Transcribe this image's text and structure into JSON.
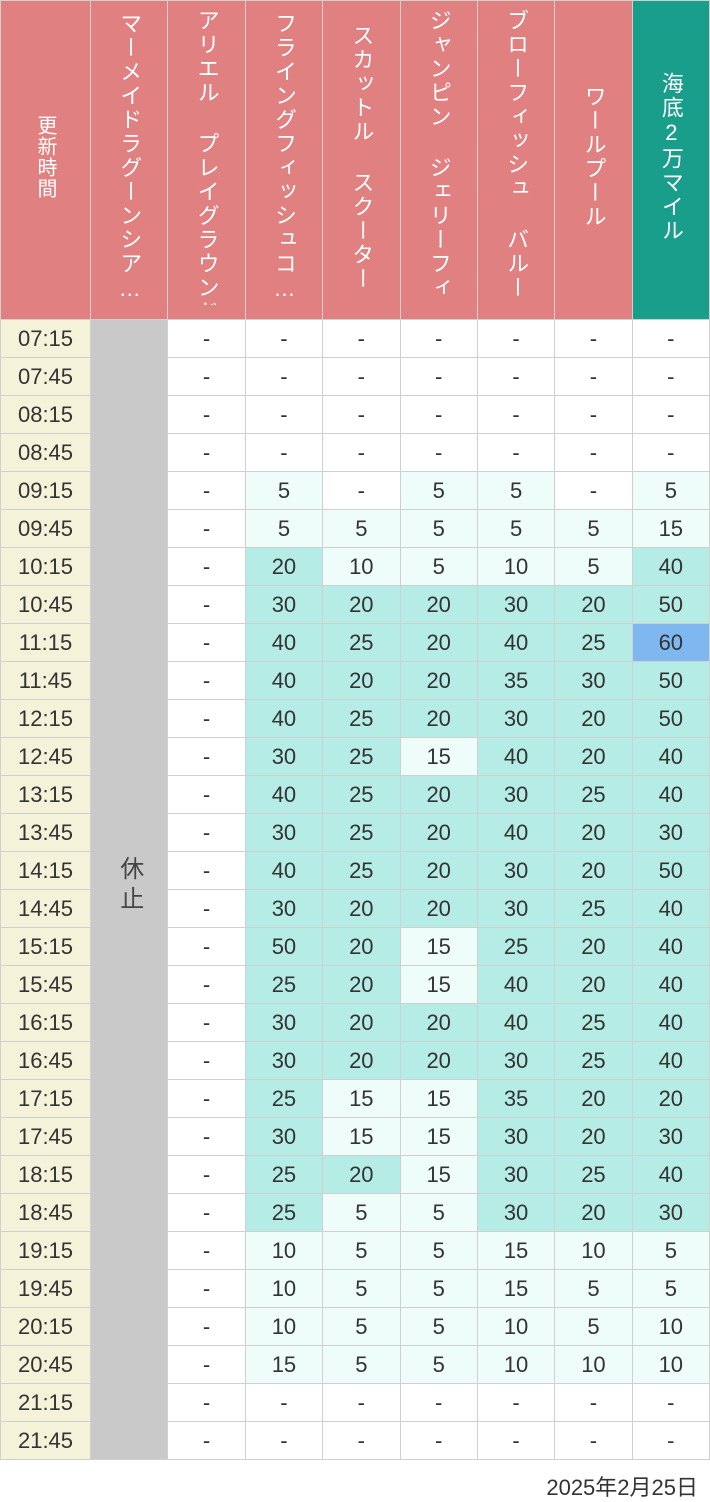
{
  "footer_date": "2025年2月25日",
  "colors": {
    "header_pink": "#e08080",
    "header_teal": "#1a9e8c",
    "time_bg": "#f5f2da",
    "closed_bg": "#c9c9c9",
    "white": "#ffffff",
    "tier1": "#eefcfa",
    "tier2": "#b5ece5",
    "tier3": "#7fb8f0",
    "border": "#d0d0d0"
  },
  "columns": [
    {
      "key": "time",
      "label": "更新時間",
      "header_color": "header_pink",
      "is_time": true
    },
    {
      "key": "c1",
      "label": "マーメイドラグーンシア…",
      "header_color": "header_pink"
    },
    {
      "key": "c2",
      "label": "アリエル プレイグラウンド",
      "header_color": "header_pink"
    },
    {
      "key": "c3",
      "label": "フライングフィッシュコ…",
      "header_color": "header_pink"
    },
    {
      "key": "c4",
      "label": "スカットル スクーター",
      "header_color": "header_pink"
    },
    {
      "key": "c5",
      "label": "ジャンピン ジェリーフィ…",
      "header_color": "header_pink"
    },
    {
      "key": "c6",
      "label": "ブローフィッシュ バルー…",
      "header_color": "header_pink"
    },
    {
      "key": "c7",
      "label": "ワールプール",
      "header_color": "header_pink"
    },
    {
      "key": "c8",
      "label": "海底2万マイル",
      "header_color": "header_teal"
    }
  ],
  "closed_label": "休止",
  "closed_column": "c1",
  "heat_thresholds": {
    "tier1_max": 19,
    "tier2_max": 59
  },
  "rows": [
    {
      "time": "07:15",
      "c2": "-",
      "c3": "-",
      "c4": "-",
      "c5": "-",
      "c6": "-",
      "c7": "-",
      "c8": "-"
    },
    {
      "time": "07:45",
      "c2": "-",
      "c3": "-",
      "c4": "-",
      "c5": "-",
      "c6": "-",
      "c7": "-",
      "c8": "-"
    },
    {
      "time": "08:15",
      "c2": "-",
      "c3": "-",
      "c4": "-",
      "c5": "-",
      "c6": "-",
      "c7": "-",
      "c8": "-"
    },
    {
      "time": "08:45",
      "c2": "-",
      "c3": "-",
      "c4": "-",
      "c5": "-",
      "c6": "-",
      "c7": "-",
      "c8": "-"
    },
    {
      "time": "09:15",
      "c2": "-",
      "c3": 5,
      "c4": "-",
      "c5": 5,
      "c6": 5,
      "c7": "-",
      "c8": 5
    },
    {
      "time": "09:45",
      "c2": "-",
      "c3": 5,
      "c4": 5,
      "c5": 5,
      "c6": 5,
      "c7": 5,
      "c8": 15
    },
    {
      "time": "10:15",
      "c2": "-",
      "c3": 20,
      "c4": 10,
      "c5": 5,
      "c6": 10,
      "c7": 5,
      "c8": 40
    },
    {
      "time": "10:45",
      "c2": "-",
      "c3": 30,
      "c4": 20,
      "c5": 20,
      "c6": 30,
      "c7": 20,
      "c8": 50
    },
    {
      "time": "11:15",
      "c2": "-",
      "c3": 40,
      "c4": 25,
      "c5": 20,
      "c6": 40,
      "c7": 25,
      "c8": 60
    },
    {
      "time": "11:45",
      "c2": "-",
      "c3": 40,
      "c4": 20,
      "c5": 20,
      "c6": 35,
      "c7": 30,
      "c8": 50
    },
    {
      "time": "12:15",
      "c2": "-",
      "c3": 40,
      "c4": 25,
      "c5": 20,
      "c6": 30,
      "c7": 20,
      "c8": 50
    },
    {
      "time": "12:45",
      "c2": "-",
      "c3": 30,
      "c4": 25,
      "c5": 15,
      "c6": 40,
      "c7": 20,
      "c8": 40
    },
    {
      "time": "13:15",
      "c2": "-",
      "c3": 40,
      "c4": 25,
      "c5": 20,
      "c6": 30,
      "c7": 25,
      "c8": 40
    },
    {
      "time": "13:45",
      "c2": "-",
      "c3": 30,
      "c4": 25,
      "c5": 20,
      "c6": 40,
      "c7": 20,
      "c8": 30
    },
    {
      "time": "14:15",
      "c2": "-",
      "c3": 40,
      "c4": 25,
      "c5": 20,
      "c6": 30,
      "c7": 20,
      "c8": 50
    },
    {
      "time": "14:45",
      "c2": "-",
      "c3": 30,
      "c4": 20,
      "c5": 20,
      "c6": 30,
      "c7": 25,
      "c8": 40
    },
    {
      "time": "15:15",
      "c2": "-",
      "c3": 50,
      "c4": 20,
      "c5": 15,
      "c6": 25,
      "c7": 20,
      "c8": 40
    },
    {
      "time": "15:45",
      "c2": "-",
      "c3": 25,
      "c4": 20,
      "c5": 15,
      "c6": 40,
      "c7": 20,
      "c8": 40
    },
    {
      "time": "16:15",
      "c2": "-",
      "c3": 30,
      "c4": 20,
      "c5": 20,
      "c6": 40,
      "c7": 25,
      "c8": 40
    },
    {
      "time": "16:45",
      "c2": "-",
      "c3": 30,
      "c4": 20,
      "c5": 20,
      "c6": 30,
      "c7": 25,
      "c8": 40
    },
    {
      "time": "17:15",
      "c2": "-",
      "c3": 25,
      "c4": 15,
      "c5": 15,
      "c6": 35,
      "c7": 20,
      "c8": 20
    },
    {
      "time": "17:45",
      "c2": "-",
      "c3": 30,
      "c4": 15,
      "c5": 15,
      "c6": 30,
      "c7": 20,
      "c8": 30
    },
    {
      "time": "18:15",
      "c2": "-",
      "c3": 25,
      "c4": 20,
      "c5": 15,
      "c6": 30,
      "c7": 25,
      "c8": 40
    },
    {
      "time": "18:45",
      "c2": "-",
      "c3": 25,
      "c4": 5,
      "c5": 5,
      "c6": 30,
      "c7": 20,
      "c8": 30
    },
    {
      "time": "19:15",
      "c2": "-",
      "c3": 10,
      "c4": 5,
      "c5": 5,
      "c6": 15,
      "c7": 10,
      "c8": 5
    },
    {
      "time": "19:45",
      "c2": "-",
      "c3": 10,
      "c4": 5,
      "c5": 5,
      "c6": 15,
      "c7": 5,
      "c8": 5
    },
    {
      "time": "20:15",
      "c2": "-",
      "c3": 10,
      "c4": 5,
      "c5": 5,
      "c6": 10,
      "c7": 5,
      "c8": 10
    },
    {
      "time": "20:45",
      "c2": "-",
      "c3": 15,
      "c4": 5,
      "c5": 5,
      "c6": 10,
      "c7": 10,
      "c8": 10
    },
    {
      "time": "21:15",
      "c2": "-",
      "c3": "-",
      "c4": "-",
      "c5": "-",
      "c6": "-",
      "c7": "-",
      "c8": "-"
    },
    {
      "time": "21:45",
      "c2": "-",
      "c3": "-",
      "c4": "-",
      "c5": "-",
      "c6": "-",
      "c7": "-",
      "c8": "-"
    }
  ]
}
